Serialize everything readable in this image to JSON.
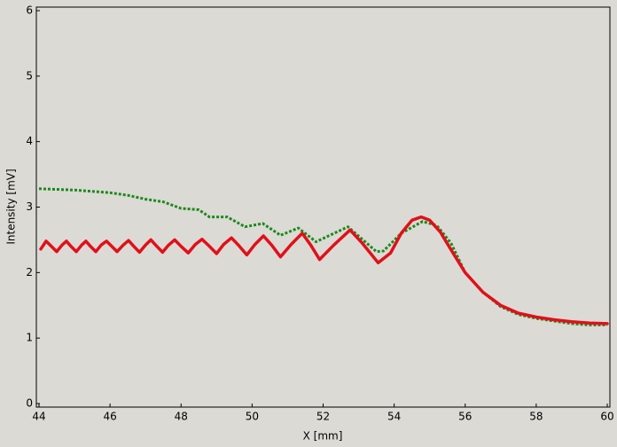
{
  "chart_data": {
    "type": "line",
    "x_label": "X [mm]",
    "y_label": "Intensity [mV]",
    "xlim": [
      43.925,
      60.075
    ],
    "ylim": [
      -0.054,
      6.054
    ],
    "xticks": [
      44,
      46,
      48,
      50,
      52,
      54,
      56,
      58,
      60
    ],
    "yticks": [
      0,
      1,
      2,
      3,
      4,
      5,
      6
    ],
    "series": [
      {
        "color": "#1a8a1a",
        "style": "dotted",
        "x": [
          44,
          45,
          46,
          46.5,
          47,
          47.5,
          48,
          48.5,
          48.8,
          49.0,
          49.3,
          49.8,
          50.3,
          50.8,
          51.3,
          51.8,
          52.7,
          53.5,
          53.7,
          54.2,
          54.8,
          55.2,
          55.6,
          56,
          56.5,
          57,
          57.5,
          58,
          58.5,
          59,
          59.5,
          60
        ],
        "values": [
          3.28,
          3.26,
          3.22,
          3.18,
          3.12,
          3.08,
          2.98,
          2.96,
          2.85,
          2.85,
          2.85,
          2.7,
          2.75,
          2.57,
          2.68,
          2.47,
          2.7,
          2.32,
          2.33,
          2.6,
          2.78,
          2.72,
          2.45,
          2.0,
          1.7,
          1.48,
          1.36,
          1.3,
          1.26,
          1.22,
          1.2,
          1.2
        ]
      },
      {
        "color": "#e0101a",
        "style": "solid",
        "x": [
          44.05,
          44.2,
          44.35,
          44.5,
          44.65,
          44.77,
          44.9,
          45.05,
          45.2,
          45.32,
          45.45,
          45.6,
          45.75,
          45.9,
          46.05,
          46.2,
          46.37,
          46.52,
          46.67,
          46.83,
          47.0,
          47.15,
          47.32,
          47.48,
          47.65,
          47.82,
          48.0,
          48.2,
          48.4,
          48.59,
          48.8,
          49.0,
          49.2,
          49.42,
          49.63,
          49.85,
          50.08,
          50.32,
          50.55,
          50.8,
          51.1,
          51.41,
          51.65,
          51.9,
          52.3,
          52.76,
          53.1,
          53.55,
          53.9,
          54.2,
          54.5,
          54.76,
          55.0,
          55.3,
          55.6,
          56.0,
          56.5,
          57.0,
          57.5,
          58.0,
          58.5,
          59.0,
          59.5,
          60.0
        ],
        "values": [
          2.36,
          2.48,
          2.4,
          2.32,
          2.42,
          2.48,
          2.4,
          2.32,
          2.42,
          2.48,
          2.4,
          2.32,
          2.42,
          2.48,
          2.4,
          2.32,
          2.42,
          2.49,
          2.4,
          2.31,
          2.42,
          2.5,
          2.4,
          2.31,
          2.42,
          2.5,
          2.4,
          2.3,
          2.43,
          2.51,
          2.4,
          2.29,
          2.43,
          2.53,
          2.41,
          2.27,
          2.43,
          2.56,
          2.42,
          2.24,
          2.43,
          2.6,
          2.42,
          2.2,
          2.42,
          2.65,
          2.45,
          2.15,
          2.3,
          2.6,
          2.8,
          2.85,
          2.8,
          2.62,
          2.35,
          2.0,
          1.7,
          1.5,
          1.38,
          1.32,
          1.28,
          1.25,
          1.23,
          1.22
        ]
      }
    ]
  }
}
